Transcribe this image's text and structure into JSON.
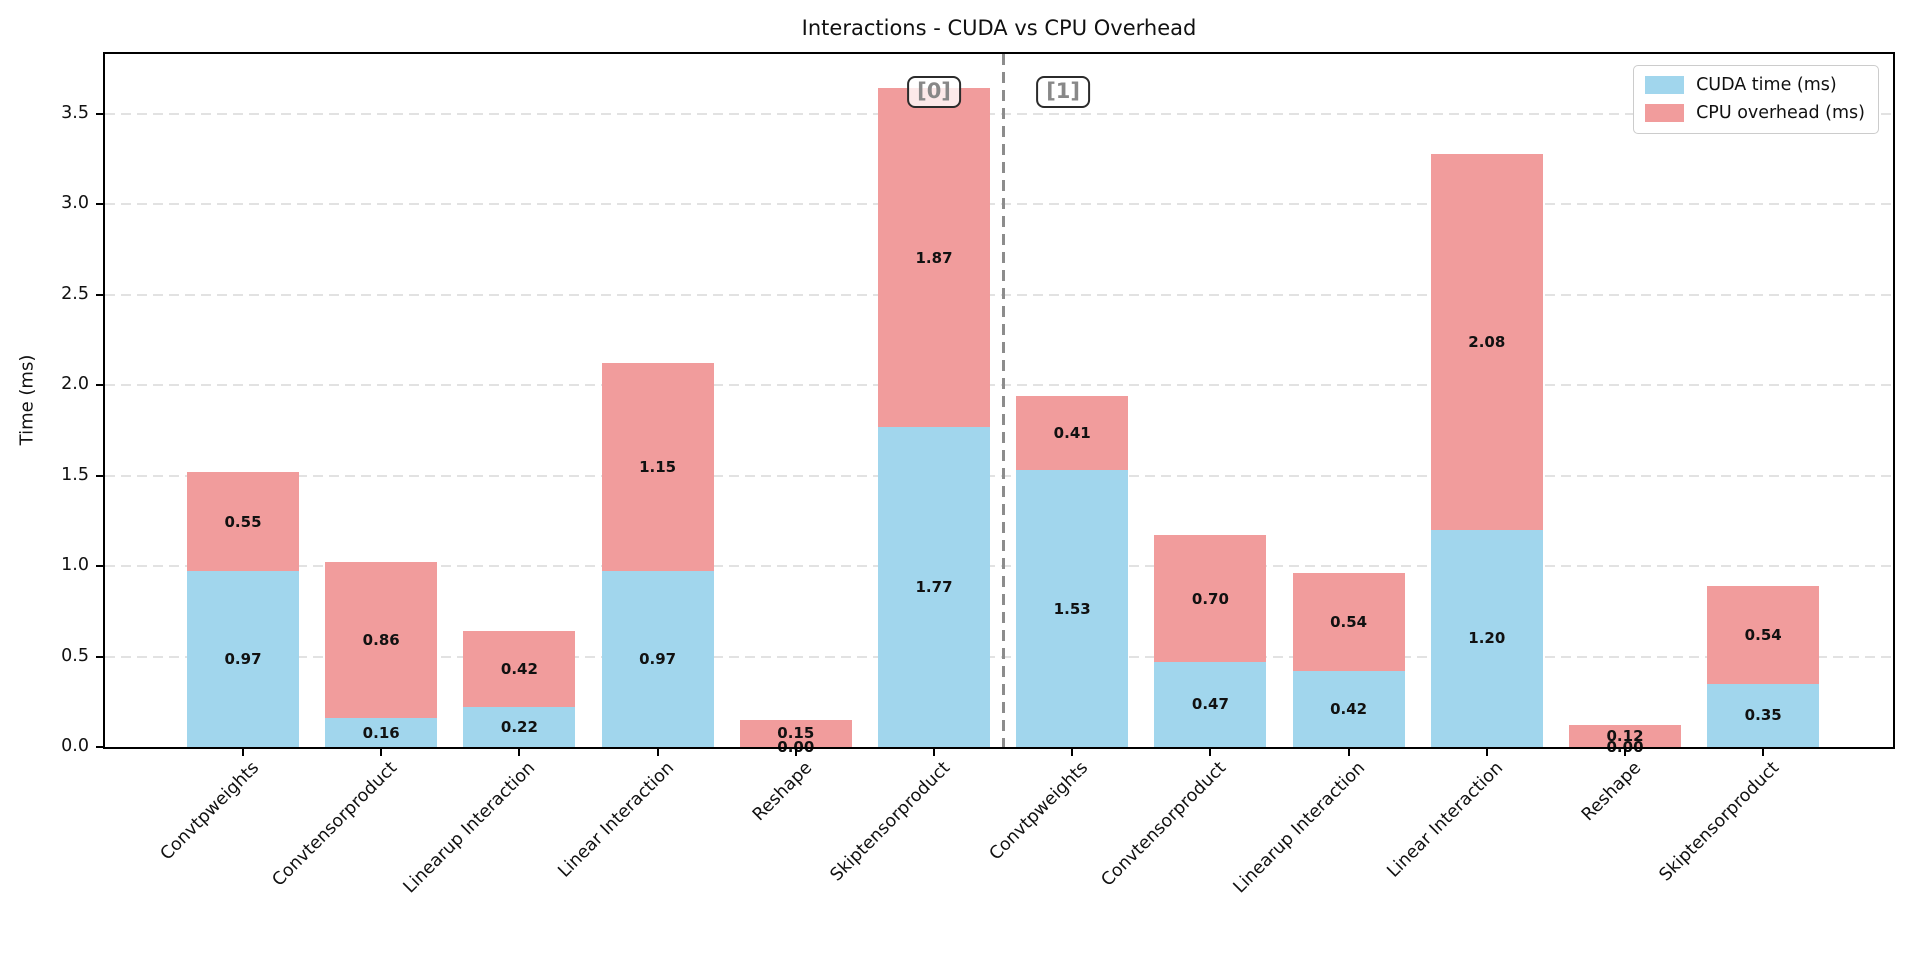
{
  "figure": {
    "title": "Interactions - CUDA vs CPU Overhead"
  },
  "chart_data": {
    "type": "bar",
    "stacked": true,
    "title": "Interactions - CUDA vs CPU Overhead",
    "xlabel": "",
    "ylabel": "Time (ms)",
    "ylim": [
      0,
      3.83
    ],
    "yticks": [
      0.0,
      0.5,
      1.0,
      1.5,
      2.0,
      2.5,
      3.0,
      3.5
    ],
    "grid": "horizontal-dashed",
    "legend_position": "upper-right",
    "categories": [
      "Convtpweights",
      "Convtensorproduct",
      "Linearup Interaction",
      "Linear Interaction",
      "Reshape",
      "Skiptensorproduct",
      "Convtpweights",
      "Convtensorproduct",
      "Linearup Interaction",
      "Linear Interaction",
      "Reshape",
      "Skiptensorproduct"
    ],
    "groups": [
      {
        "label": "[0]",
        "category_start": 0,
        "category_end": 5
      },
      {
        "label": "[1]",
        "category_start": 6,
        "category_end": 11
      }
    ],
    "separator_after_index": 5,
    "series": [
      {
        "name": "CUDA time (ms)",
        "color": "#a1d6ed",
        "values": [
          0.97,
          0.16,
          0.22,
          0.97,
          0.0,
          1.77,
          1.53,
          0.47,
          0.42,
          1.2,
          0.0,
          0.35
        ]
      },
      {
        "name": "CPU overhead (ms)",
        "color": "#f19c9c",
        "values": [
          0.55,
          0.86,
          0.42,
          1.15,
          0.15,
          1.87,
          0.41,
          0.7,
          0.54,
          2.08,
          0.12,
          0.54
        ]
      }
    ]
  }
}
